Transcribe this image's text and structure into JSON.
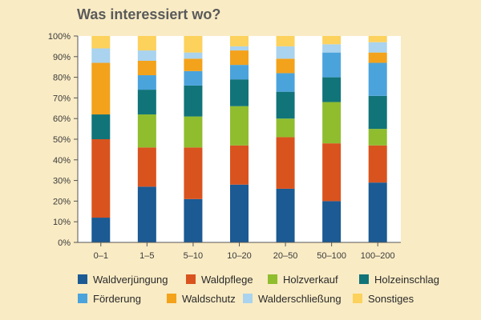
{
  "chart_data": {
    "type": "bar",
    "stacked": true,
    "title": "Was interessiert wo?",
    "xlabel": "",
    "ylabel": "",
    "ylim": [
      0,
      100
    ],
    "y_ticks": [
      "0%",
      "10%",
      "20%",
      "30%",
      "40%",
      "50%",
      "60%",
      "70%",
      "80%",
      "90%",
      "100%"
    ],
    "grid": false,
    "legend_position": "bottom",
    "categories": [
      "0–1",
      "1–5",
      "5–10",
      "10–20",
      "20–50",
      "50–100",
      "100–200"
    ],
    "series": [
      {
        "name": "Waldverjüngung",
        "color": "#1b5a93",
        "values": [
          12,
          27,
          21,
          28,
          26,
          20,
          29
        ]
      },
      {
        "name": "Waldpflege",
        "color": "#d9531e",
        "values": [
          38,
          19,
          25,
          19,
          25,
          28,
          18
        ]
      },
      {
        "name": "Holzverkauf",
        "color": "#8fbd2e",
        "values": [
          0,
          16,
          15,
          19,
          9,
          20,
          8
        ]
      },
      {
        "name": "Holzeinschlag",
        "color": "#117479",
        "values": [
          12,
          12,
          15,
          13,
          13,
          12,
          16
        ]
      },
      {
        "name": "Förderung",
        "color": "#4ba3dc",
        "values": [
          0,
          7,
          7,
          7,
          9,
          12,
          16
        ]
      },
      {
        "name": "Waldschutz",
        "color": "#f3a21b",
        "values": [
          25,
          7,
          6,
          7,
          7,
          0,
          5
        ]
      },
      {
        "name": "Walderschließung",
        "color": "#a9d3ee",
        "values": [
          7,
          5,
          3,
          2,
          6,
          4,
          5
        ]
      },
      {
        "name": "Sonstiges",
        "color": "#fcd15c",
        "values": [
          6,
          7,
          8,
          5,
          5,
          4,
          3
        ]
      }
    ]
  }
}
